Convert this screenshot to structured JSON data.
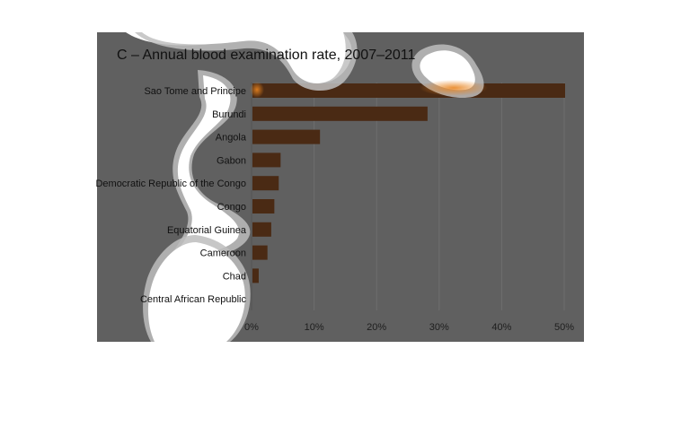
{
  "chart_data": {
    "type": "bar",
    "orientation": "horizontal",
    "title": "C – Annual blood examination rate, 2007–2011",
    "xlabel": "",
    "ylabel": "",
    "categories": [
      "Sao Tome and Principe",
      "Burundi",
      "Angola",
      "Gabon",
      "Democratic Republic of the Congo",
      "Congo",
      "Equatorial Guinea",
      "Cameroon",
      "Chad",
      "Central African Republic"
    ],
    "values": [
      50,
      28,
      10.8,
      4.5,
      4.2,
      3.5,
      3.0,
      2.4,
      1.0,
      0
    ],
    "xlim": [
      0,
      50
    ],
    "x_ticks": [
      0,
      10,
      20,
      30,
      40,
      50
    ],
    "x_tick_labels": [
      "0%",
      "10%",
      "20%",
      "30%",
      "40%",
      "50%"
    ],
    "grid": true,
    "legend": "none",
    "colors": {
      "background": "#606060",
      "bar": "#4a2a14",
      "gridline": "#6e6e6e",
      "highlight": "#ffffff",
      "bar_glow": "#c56a1c"
    }
  }
}
